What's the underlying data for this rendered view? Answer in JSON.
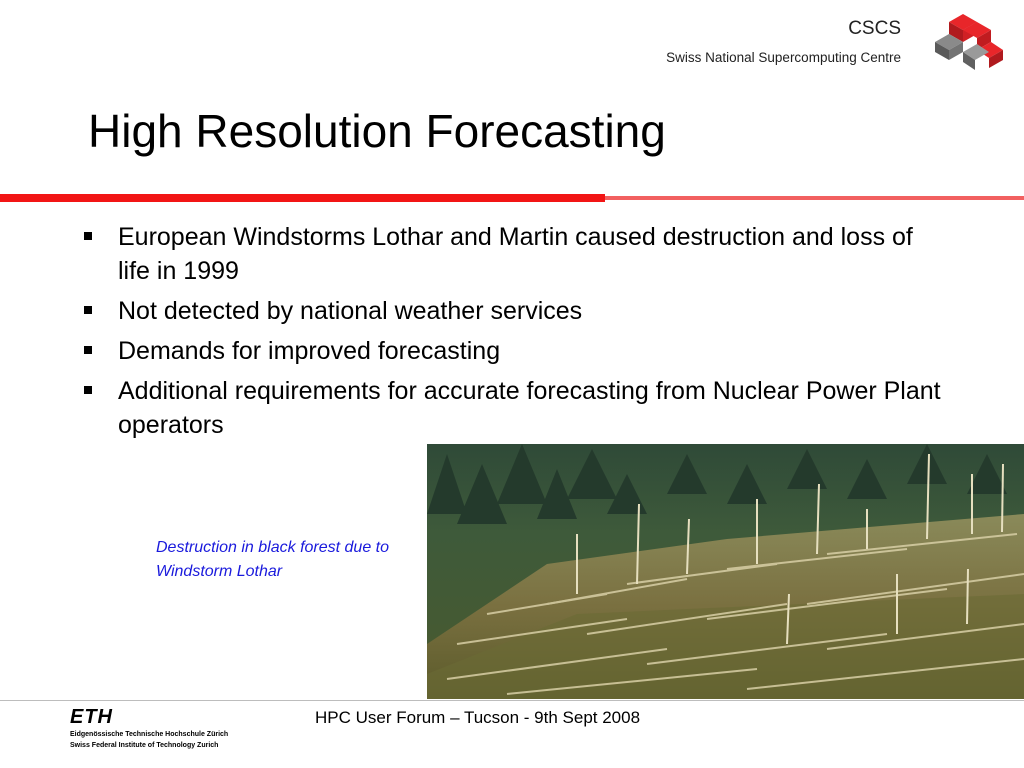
{
  "header": {
    "org_name": "CSCS",
    "org_subtitle": "Swiss National Supercomputing Centre",
    "logo_icon": "cscs-cubes-icon",
    "accent_color": "#f21515"
  },
  "slide": {
    "title": "High Resolution Forecasting",
    "bullets": [
      "European Windstorms Lothar and Martin caused destruction and loss of life in 1999",
      "Not detected by national weather services",
      "Demands for improved forecasting",
      "Additional requirements for accurate forecasting from Nuclear Power Plant operators"
    ],
    "photo_caption": "Destruction in black forest due to Windstorm Lothar",
    "photo_subject": "storm-damaged-forest-photo"
  },
  "footer": {
    "eth_logo_word": "ETH",
    "eth_line1": "Eidgenössische Technische Hochschule Zürich",
    "eth_line2": "Swiss Federal Institute of Technology Zurich",
    "event_text": "HPC User Forum – Tucson - 9th Sept 2008"
  }
}
